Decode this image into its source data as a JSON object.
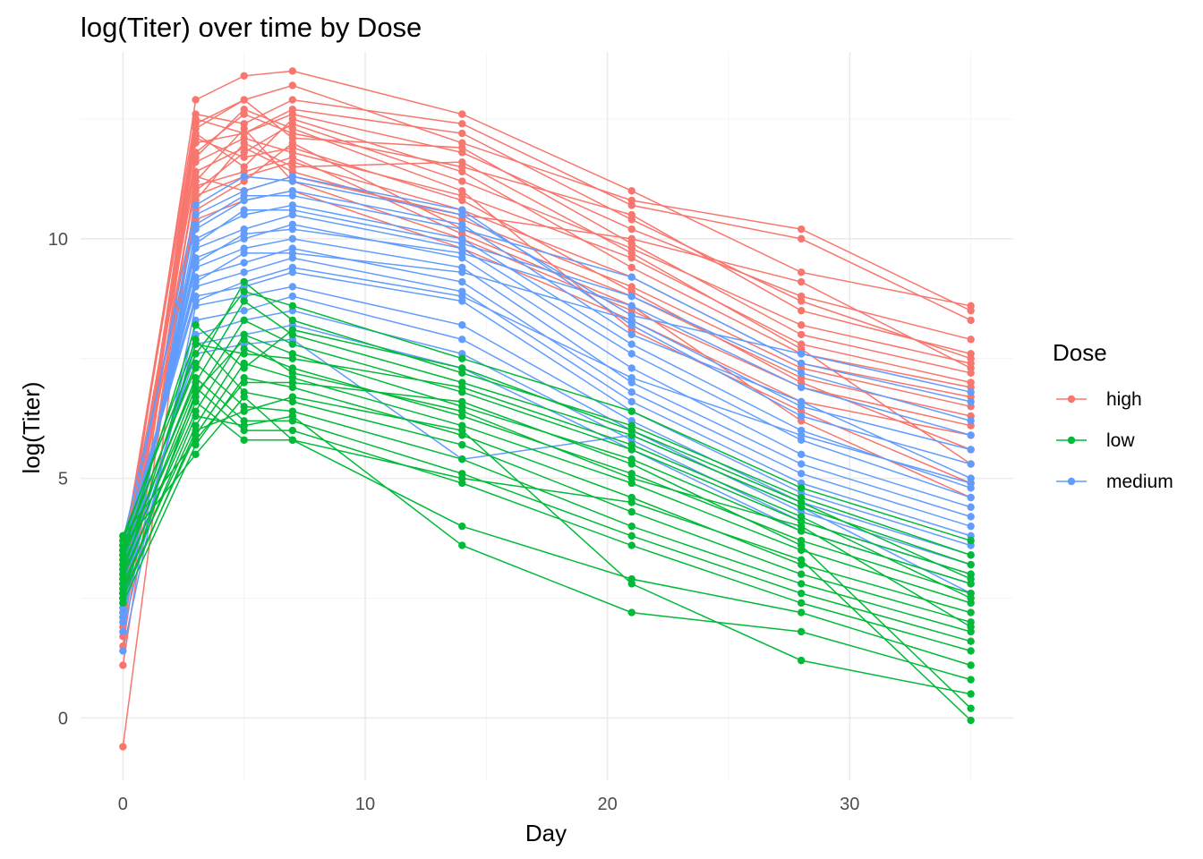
{
  "chart_data": {
    "type": "line",
    "title": "log(Titer) over time by Dose",
    "xlabel": "Day",
    "ylabel": "log(Titer)",
    "x": [
      0,
      3,
      5,
      7,
      14,
      21,
      28,
      35
    ],
    "xlim": [
      -1.75,
      36.75
    ],
    "ylim": [
      -1.3,
      13.9
    ],
    "x_ticks": [
      0,
      10,
      20,
      30
    ],
    "y_ticks": [
      0,
      5,
      10
    ],
    "grid": true,
    "legend": {
      "title": "Dose",
      "placement": "right",
      "entries": [
        "high",
        "low",
        "medium"
      ]
    },
    "colors": {
      "high": "#F8766D",
      "low": "#00BA38",
      "medium": "#619CFF"
    },
    "series": [
      {
        "name": "high",
        "values": [
          2.6,
          12.3,
          12.9,
          13.2,
          12.0,
          10.8,
          10.2,
          8.5
        ]
      },
      {
        "name": "high",
        "values": [
          3.0,
          12.9,
          13.4,
          13.5,
          12.6,
          11.0,
          9.3,
          8.6
        ]
      },
      {
        "name": "high",
        "values": [
          3.4,
          12.6,
          12.4,
          12.9,
          12.4,
          10.7,
          10.0,
          8.3
        ]
      },
      {
        "name": "high",
        "values": [
          2.1,
          12.0,
          12.2,
          12.6,
          11.8,
          10.2,
          8.8,
          7.9
        ]
      },
      {
        "name": "high",
        "values": [
          1.7,
          11.8,
          12.6,
          12.2,
          11.5,
          10.5,
          8.5,
          7.6
        ]
      },
      {
        "name": "high",
        "values": [
          -0.6,
          11.0,
          11.8,
          12.4,
          11.2,
          9.8,
          8.2,
          7.4
        ]
      },
      {
        "name": "high",
        "values": [
          3.3,
          12.4,
          12.9,
          12.1,
          11.9,
          9.9,
          8.0,
          7.2
        ]
      },
      {
        "name": "high",
        "values": [
          2.9,
          11.6,
          12.1,
          11.8,
          10.9,
          9.6,
          7.8,
          7.0
        ]
      },
      {
        "name": "high",
        "values": [
          2.4,
          12.2,
          11.5,
          12.5,
          11.4,
          9.4,
          7.6,
          6.9
        ]
      },
      {
        "name": "high",
        "values": [
          1.1,
          10.9,
          11.3,
          11.6,
          10.6,
          9.2,
          7.4,
          6.7
        ]
      },
      {
        "name": "high",
        "values": [
          3.1,
          11.4,
          11.9,
          11.4,
          10.4,
          9.0,
          7.3,
          6.5
        ]
      },
      {
        "name": "high",
        "values": [
          2.8,
          10.6,
          11.2,
          12.0,
          10.2,
          8.8,
          7.1,
          6.3
        ]
      },
      {
        "name": "high",
        "values": [
          2.5,
          11.2,
          12.3,
          11.2,
          10.0,
          8.5,
          6.9,
          6.1
        ]
      },
      {
        "name": "high",
        "values": [
          3.5,
          10.4,
          10.8,
          11.0,
          9.8,
          8.3,
          6.6,
          5.9
        ]
      },
      {
        "name": "high",
        "values": [
          2.2,
          12.1,
          11.7,
          11.9,
          10.8,
          8.9,
          7.0,
          5.6
        ]
      },
      {
        "name": "high",
        "values": [
          1.9,
          10.8,
          12.0,
          11.5,
          11.6,
          9.7,
          7.7,
          5.3
        ]
      },
      {
        "name": "high",
        "values": [
          3.2,
          11.7,
          12.7,
          12.3,
          11.0,
          8.1,
          6.4,
          4.9
        ]
      },
      {
        "name": "high",
        "values": [
          2.7,
          11.1,
          11.4,
          11.7,
          10.1,
          8.6,
          6.2,
          4.6
        ]
      },
      {
        "name": "high",
        "values": [
          2.3,
          12.5,
          12.2,
          12.7,
          12.2,
          10.4,
          8.7,
          7.5
        ]
      },
      {
        "name": "high",
        "values": [
          1.5,
          11.3,
          11.0,
          11.3,
          10.5,
          10.0,
          9.1,
          7.3
        ]
      },
      {
        "name": "low",
        "values": [
          3.8,
          7.6,
          8.9,
          8.6,
          7.5,
          6.4,
          4.8,
          3.7
        ]
      },
      {
        "name": "low",
        "values": [
          3.6,
          7.3,
          9.1,
          8.3,
          7.2,
          6.1,
          4.6,
          3.4
        ]
      },
      {
        "name": "low",
        "values": [
          3.4,
          7.0,
          8.7,
          8.0,
          7.0,
          5.9,
          4.4,
          3.2
        ]
      },
      {
        "name": "low",
        "values": [
          3.2,
          6.7,
          8.3,
          7.8,
          6.8,
          5.6,
          4.1,
          3.0
        ]
      },
      {
        "name": "low",
        "values": [
          3.0,
          6.4,
          8.0,
          7.6,
          6.5,
          5.4,
          3.9,
          2.8
        ]
      },
      {
        "name": "low",
        "values": [
          2.8,
          6.1,
          7.7,
          7.3,
          6.3,
          5.1,
          3.7,
          2.6
        ]
      },
      {
        "name": "low",
        "values": [
          2.6,
          5.9,
          7.4,
          7.1,
          6.1,
          4.9,
          3.5,
          2.4
        ]
      },
      {
        "name": "low",
        "values": [
          2.4,
          5.7,
          7.1,
          6.9,
          5.9,
          4.6,
          3.2,
          2.2
        ]
      },
      {
        "name": "low",
        "values": [
          3.7,
          7.9,
          6.8,
          6.6,
          5.7,
          4.3,
          3.0,
          2.0
        ]
      },
      {
        "name": "low",
        "values": [
          3.5,
          7.4,
          6.5,
          6.4,
          5.4,
          4.0,
          2.8,
          1.8
        ]
      },
      {
        "name": "low",
        "values": [
          3.3,
          7.1,
          6.2,
          6.2,
          5.1,
          3.8,
          2.6,
          1.6
        ]
      },
      {
        "name": "low",
        "values": [
          3.1,
          6.9,
          6.0,
          6.0,
          4.9,
          3.6,
          2.4,
          1.4
        ]
      },
      {
        "name": "low",
        "values": [
          2.9,
          6.6,
          5.8,
          5.8,
          4.0,
          2.9,
          2.2,
          1.1
        ]
      },
      {
        "name": "low",
        "values": [
          2.7,
          6.3,
          6.1,
          6.3,
          3.6,
          2.2,
          1.8,
          0.8
        ]
      },
      {
        "name": "low",
        "values": [
          2.5,
          6.0,
          6.4,
          6.7,
          6.0,
          2.8,
          1.2,
          0.5
        ]
      },
      {
        "name": "low",
        "values": [
          3.8,
          5.8,
          7.0,
          7.0,
          6.6,
          5.3,
          3.6,
          0.2
        ]
      },
      {
        "name": "low",
        "values": [
          3.6,
          5.5,
          6.7,
          5.8,
          5.0,
          4.5,
          3.3,
          -0.05
        ]
      },
      {
        "name": "low",
        "values": [
          3.4,
          8.2,
          7.3,
          8.1,
          7.3,
          6.0,
          4.5,
          2.9
        ]
      },
      {
        "name": "low",
        "values": [
          3.0,
          7.8,
          7.6,
          7.5,
          6.9,
          5.7,
          4.2,
          2.5
        ]
      },
      {
        "name": "low",
        "values": [
          2.6,
          6.8,
          7.9,
          7.2,
          6.4,
          5.0,
          4.0,
          1.9
        ]
      },
      {
        "name": "medium",
        "values": [
          2.0,
          10.5,
          11.0,
          11.3,
          10.6,
          8.2,
          6.3,
          5.3
        ]
      },
      {
        "name": "medium",
        "values": [
          2.2,
          10.2,
          10.8,
          11.0,
          10.3,
          8.0,
          6.6,
          5.0
        ]
      },
      {
        "name": "medium",
        "values": [
          2.4,
          10.0,
          10.5,
          10.7,
          10.0,
          7.8,
          6.0,
          4.8
        ]
      },
      {
        "name": "medium",
        "values": [
          2.6,
          9.8,
          10.2,
          10.5,
          9.8,
          7.6,
          5.8,
          4.6
        ]
      },
      {
        "name": "medium",
        "values": [
          2.8,
          9.6,
          10.0,
          10.3,
          9.6,
          7.3,
          5.5,
          4.4
        ]
      },
      {
        "name": "medium",
        "values": [
          3.0,
          9.4,
          9.8,
          10.0,
          9.4,
          7.0,
          5.3,
          4.2
        ]
      },
      {
        "name": "medium",
        "values": [
          3.2,
          9.2,
          9.5,
          9.8,
          9.1,
          6.8,
          5.1,
          4.0
        ]
      },
      {
        "name": "medium",
        "values": [
          3.4,
          9.0,
          9.3,
          9.6,
          8.9,
          6.6,
          4.9,
          3.8
        ]
      },
      {
        "name": "medium",
        "values": [
          3.6,
          8.8,
          9.0,
          9.3,
          8.7,
          6.4,
          4.7,
          3.6
        ]
      },
      {
        "name": "medium",
        "values": [
          1.4,
          8.6,
          8.8,
          9.0,
          8.2,
          6.2,
          4.5,
          3.4
        ]
      },
      {
        "name": "medium",
        "values": [
          1.8,
          8.3,
          8.5,
          8.8,
          7.9,
          6.0,
          4.3,
          3.2
        ]
      },
      {
        "name": "medium",
        "values": [
          2.1,
          8.0,
          8.3,
          8.5,
          7.6,
          5.8,
          4.1,
          3.0
        ]
      },
      {
        "name": "medium",
        "values": [
          2.5,
          7.8,
          8.0,
          8.2,
          7.3,
          5.6,
          3.9,
          2.8
        ]
      },
      {
        "name": "medium",
        "values": [
          2.9,
          7.6,
          7.8,
          7.9,
          5.4,
          5.9,
          4.4,
          2.6
        ]
      },
      {
        "name": "medium",
        "values": [
          3.3,
          10.7,
          11.3,
          11.2,
          10.5,
          8.4,
          7.6,
          6.8
        ]
      },
      {
        "name": "medium",
        "values": [
          3.7,
          10.3,
          10.9,
          10.9,
          10.2,
          9.2,
          7.4,
          6.6
        ]
      },
      {
        "name": "medium",
        "values": [
          2.3,
          9.9,
          10.6,
          10.6,
          9.9,
          8.8,
          7.2,
          6.2
        ]
      },
      {
        "name": "medium",
        "values": [
          2.7,
          9.5,
          10.1,
          10.2,
          9.7,
          8.6,
          6.9,
          5.9
        ]
      },
      {
        "name": "medium",
        "values": [
          3.1,
          9.1,
          9.7,
          9.7,
          9.3,
          8.3,
          6.5,
          5.6
        ]
      },
      {
        "name": "medium",
        "values": [
          3.5,
          8.7,
          9.1,
          9.4,
          8.8,
          7.1,
          5.9,
          4.9
        ]
      }
    ]
  }
}
